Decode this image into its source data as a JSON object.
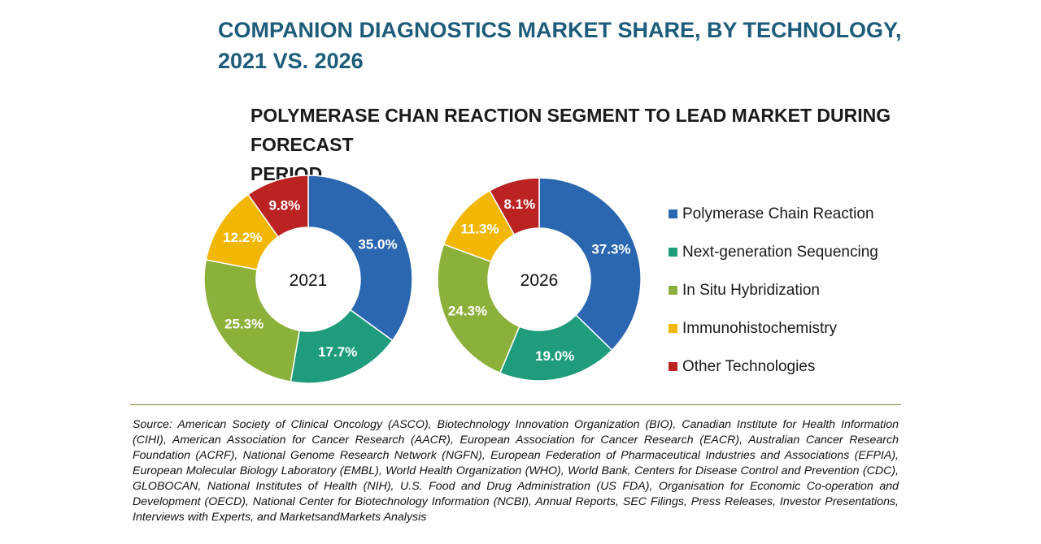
{
  "title_line1": "COMPANION DIAGNOSTICS MARKET SHARE, BY TECHNOLOGY,",
  "title_line2": "2021 VS. 2026",
  "subtitle_line1": "POLYMERASE CHAN REACTION SEGMENT TO LEAD MARKET DURING FORECAST",
  "subtitle_line2": "PERIOD",
  "colors": {
    "Polymerase Chain Reaction": "#2b67b0",
    "Next-generation Sequencing": "#1e9c7c",
    "In Situ Hybridization": "#8cb13a",
    "Immunohistochemistry": "#f2b705",
    "Other Technologies": "#bb2222"
  },
  "chart_data": [
    {
      "type": "pie",
      "variant": "donut",
      "center_label": "2021",
      "categories": [
        "Polymerase Chain Reaction",
        "Next-generation Sequencing",
        "In Situ Hybridization",
        "Immunohistochemistry",
        "Other Technologies"
      ],
      "values": [
        35.0,
        17.7,
        25.3,
        12.2,
        9.8
      ],
      "labels": [
        "35.0%",
        "17.7%",
        "25.3%",
        "12.2%",
        "9.8%"
      ]
    },
    {
      "type": "pie",
      "variant": "donut",
      "center_label": "2026",
      "categories": [
        "Polymerase Chain Reaction",
        "Next-generation Sequencing",
        "In Situ Hybridization",
        "Immunohistochemistry",
        "Other Technologies"
      ],
      "values": [
        37.3,
        19.0,
        24.3,
        11.3,
        8.1
      ],
      "labels": [
        "37.3%",
        "19.0%",
        "24.3%",
        "11.3%",
        "8.1%"
      ]
    }
  ],
  "legend": [
    "Polymerase Chain Reaction",
    "Next-generation Sequencing",
    "In Situ Hybridization",
    "Immunohistochemistry",
    "Other Technologies"
  ],
  "source": "Source: American Society of Clinical Oncology (ASCO), Biotechnology Innovation Organization (BIO), Canadian Institute for Health Information (CIHI), American Association for Cancer Research (AACR), European Association for Cancer Research (EACR), Australian Cancer Research Foundation (ACRF), National Genome Research Network (NGFN), European Federation of Pharmaceutical Industries and Associations (EFPIA), European Molecular Biology Laboratory (EMBL), World Health Organization (WHO), World Bank, Centers for Disease Control and Prevention (CDC), GLOBOCAN, National Institutes of Health (NIH), U.S. Food and Drug Administration (US FDA), Organisation for Economic Co-operation and Development (OECD), National Center for Biotechnology Information (NCBI), Annual Reports, SEC Filings, Press Releases, Investor Presentations, Interviews with Experts, and MarketsandMarkets Analysis"
}
